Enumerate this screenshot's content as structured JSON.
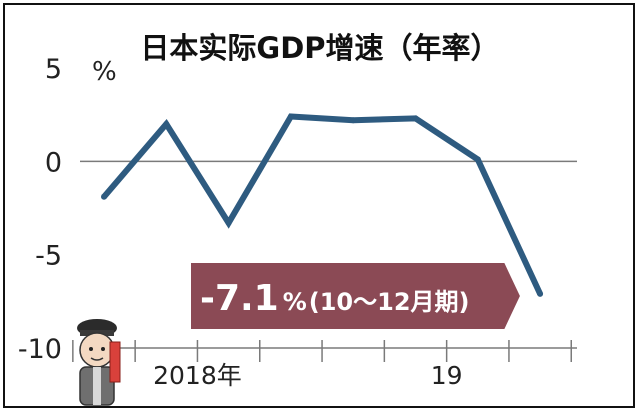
{
  "colors": {
    "line": "#2e5b80",
    "axis": "#7a7a7a",
    "callout_bg": "#8b4a55"
  },
  "chart_data": {
    "type": "line",
    "title": "日本实际GDP增速（年率）",
    "unit_label": "%",
    "ylim": [
      -10,
      5
    ],
    "yticks": [
      {
        "value": 5,
        "label": "5"
      },
      {
        "value": 0,
        "label": "0"
      },
      {
        "value": -5,
        "label": "-5"
      },
      {
        "value": -10,
        "label": "-10"
      }
    ],
    "xtick_labels": [
      {
        "label": "2018年",
        "index": 1.5
      },
      {
        "label": "19",
        "index": 5.5
      }
    ],
    "series": [
      {
        "values": [
          -1.9,
          2.0,
          -3.3,
          2.4,
          2.2,
          2.3,
          0.1,
          -7.1
        ]
      }
    ],
    "annotation": {
      "value": "-7.1",
      "unit": "%",
      "period": "(10～12月期)"
    },
    "grid": false
  }
}
